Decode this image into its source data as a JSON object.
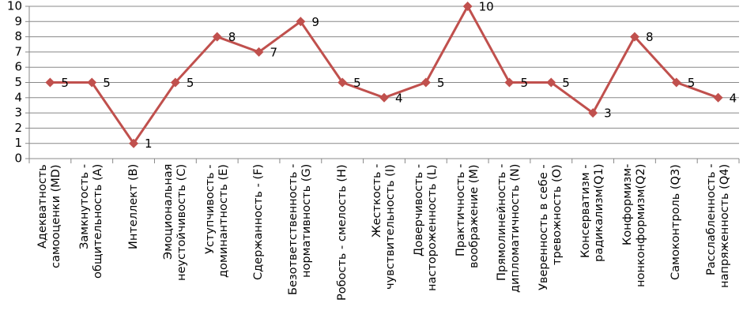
{
  "chart_data": {
    "type": "line",
    "categories": [
      "Адекватность самооценки (MD)",
      "Замкнутость - общительность (A)",
      "Интеллект (B)",
      "Эмоциональная неустойчивость (C)",
      "Уступчивость - доминантность (E)",
      "Сдержанность - (F)",
      "Безответственность - нормативность (G)",
      "Робость - смелость (H)",
      "Жесткость - чувствительность (I)",
      "Доверчивость - настороженность (L)",
      "Практичность - воображение (M)",
      "Прямолинейность - дипломатичность (N)",
      "Уверенность в себе - тревожность (O)",
      "Консерватизм - радикализм(Q1)",
      "Конформизм-нонконформизм(Q2)",
      "Самоконтроль (Q3)",
      "Расслабленность - напряженность (Q4)"
    ],
    "series": [
      {
        "color": "#c0504d",
        "values": [
          5,
          5,
          1,
          5,
          8,
          7,
          9,
          5,
          4,
          5,
          10,
          5,
          5,
          3,
          8,
          5,
          4
        ]
      }
    ],
    "ylim": [
      0,
      10
    ],
    "yticks": [
      0,
      1,
      2,
      3,
      4,
      5,
      6,
      7,
      8,
      9,
      10
    ],
    "grid": true,
    "data_labels": true
  }
}
